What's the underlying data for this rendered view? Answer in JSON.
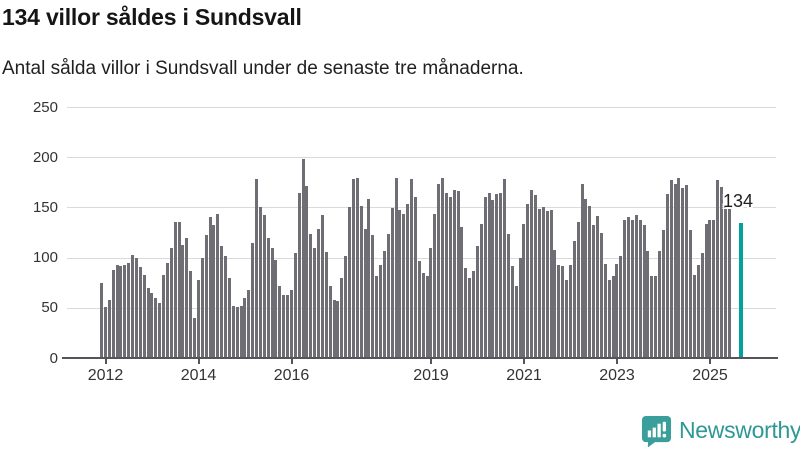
{
  "header": {
    "title": "134 villor såldes i Sundsvall",
    "subtitle": "Antal sålda villor i Sundsvall under de senaste tre månaderna."
  },
  "chart_data": {
    "type": "bar",
    "title": "134 villor såldes i Sundsvall",
    "subtitle": "Antal sålda villor i Sundsvall under de senaste tre månaderna.",
    "x_period": "monthly, rolling three-month totals, starting 2012-01",
    "x_tick_labels": [
      "2012",
      "2014",
      "2016",
      "2019",
      "2021",
      "2023",
      "2025"
    ],
    "y_ticks": [
      0,
      50,
      100,
      150,
      200,
      250
    ],
    "ylim": [
      0,
      250
    ],
    "grid": "horizontal",
    "legend": "none",
    "values": [
      75,
      51,
      58,
      88,
      93,
      92,
      93,
      95,
      103,
      100,
      91,
      83,
      70,
      65,
      60,
      55,
      83,
      95,
      110,
      135,
      135,
      113,
      120,
      87,
      40,
      78,
      100,
      123,
      140,
      132,
      143,
      112,
      102,
      80,
      52,
      51,
      52,
      60,
      68,
      115,
      178,
      150,
      142,
      120,
      110,
      98,
      72,
      63,
      63,
      68,
      105,
      164,
      198,
      171,
      124,
      110,
      128,
      142,
      106,
      72,
      58,
      57,
      80,
      102,
      150,
      178,
      179,
      151,
      128,
      158,
      123,
      82,
      93,
      107,
      124,
      149,
      179,
      147,
      143,
      153,
      178,
      160,
      97,
      85,
      82,
      110,
      143,
      173,
      179,
      164,
      160,
      167,
      166,
      130,
      90,
      80,
      87,
      112,
      133,
      160,
      164,
      157,
      163,
      164,
      178,
      124,
      92,
      72,
      100,
      133,
      153,
      167,
      162,
      148,
      150,
      146,
      147,
      108,
      93,
      92,
      78,
      93,
      117,
      135,
      173,
      158,
      151,
      132,
      141,
      125,
      94,
      78,
      82,
      94,
      102,
      137,
      140,
      137,
      142,
      137,
      132,
      107,
      82,
      82,
      107,
      127,
      163,
      177,
      173,
      179,
      169,
      172,
      127,
      83,
      93,
      105,
      133,
      137,
      137,
      177,
      170,
      150,
      148
    ],
    "highlight": {
      "label": "134",
      "value": 134,
      "gap_slots": 2
    },
    "colors": {
      "bar": "#6e6e74",
      "highlight": "#00a29a",
      "gridline": "#dadada",
      "axis": "#54545a"
    }
  },
  "branding": {
    "logo_text": "Newsworthy",
    "logo_color": "#2e9894",
    "icon_color": "#3a9e9a"
  }
}
